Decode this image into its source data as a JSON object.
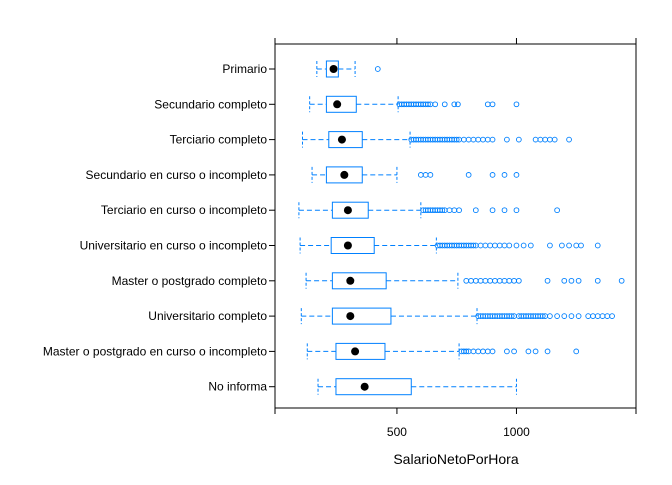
{
  "chart_data": {
    "type": "boxplot",
    "orientation": "horizontal",
    "title": "",
    "xlabel": "SalarioNetoPorHora",
    "ylabel": "",
    "xlim": [
      -10,
      1500
    ],
    "xticks": [
      500,
      1000
    ],
    "xtick_labels": [
      "500",
      "1000"
    ],
    "grid": false,
    "box_color": "#0080ff",
    "median_color": "#000000",
    "categories": [
      "Primario",
      "Secundario completo",
      "Terciario completo",
      "Secundario en curso o incompleto",
      "Terciario en curso o incompleto",
      "Universitario en curso o incompleto",
      "Master o postgrado completo",
      "Universitario completo",
      "Master o postgrado en curso o incompleto",
      "No informa"
    ],
    "boxes": [
      {
        "whisker_low": 165,
        "q1": 205,
        "median": 235,
        "q3": 255,
        "whisker_high": 325,
        "outliers": [
          420
        ]
      },
      {
        "whisker_low": 135,
        "q1": 205,
        "median": 250,
        "q3": 330,
        "whisker_high": 505,
        "outliers": [
          510,
          520,
          530,
          540,
          550,
          560,
          570,
          580,
          590,
          600,
          610,
          620,
          630,
          640,
          660,
          700,
          740,
          755,
          880,
          900,
          1000
        ]
      },
      {
        "whisker_low": 105,
        "q1": 215,
        "median": 270,
        "q3": 355,
        "whisker_high": 555,
        "outliers": [
          560,
          570,
          580,
          590,
          600,
          610,
          620,
          630,
          640,
          650,
          660,
          670,
          680,
          690,
          700,
          710,
          720,
          730,
          740,
          750,
          760,
          780,
          800,
          820,
          840,
          860,
          880,
          900,
          960,
          1010,
          1080,
          1100,
          1120,
          1140,
          1160,
          1220
        ]
      },
      {
        "whisker_low": 145,
        "q1": 205,
        "median": 280,
        "q3": 355,
        "whisker_high": 500,
        "outliers": [
          600,
          620,
          640,
          800,
          900,
          950,
          1000
        ]
      },
      {
        "whisker_low": 90,
        "q1": 230,
        "median": 295,
        "q3": 380,
        "whisker_high": 600,
        "outliers": [
          610,
          620,
          630,
          640,
          650,
          660,
          670,
          680,
          690,
          700,
          720,
          740,
          760,
          830,
          900,
          950,
          1000,
          1170
        ]
      },
      {
        "whisker_low": 95,
        "q1": 225,
        "median": 295,
        "q3": 405,
        "whisker_high": 665,
        "outliers": [
          670,
          680,
          690,
          700,
          710,
          720,
          730,
          740,
          750,
          760,
          770,
          780,
          790,
          800,
          810,
          820,
          830,
          850,
          870,
          890,
          910,
          930,
          950,
          970,
          1000,
          1030,
          1060,
          1140,
          1190,
          1220,
          1250,
          1270,
          1340
        ]
      },
      {
        "whisker_low": 120,
        "q1": 230,
        "median": 305,
        "q3": 455,
        "whisker_high": 755,
        "outliers": [
          790,
          810,
          830,
          850,
          870,
          890,
          910,
          930,
          950,
          970,
          990,
          1010,
          1130,
          1200,
          1230,
          1260,
          1340,
          1440
        ]
      },
      {
        "whisker_low": 100,
        "q1": 230,
        "median": 305,
        "q3": 475,
        "whisker_high": 835,
        "outliers": [
          840,
          850,
          860,
          870,
          880,
          890,
          900,
          910,
          920,
          930,
          940,
          950,
          960,
          970,
          980,
          990,
          1010,
          1020,
          1030,
          1040,
          1050,
          1060,
          1070,
          1080,
          1090,
          1100,
          1110,
          1120,
          1140,
          1170,
          1200,
          1230,
          1260,
          1300,
          1320,
          1340,
          1360,
          1380,
          1400
        ]
      },
      {
        "whisker_low": 125,
        "q1": 245,
        "median": 325,
        "q3": 450,
        "whisker_high": 760,
        "outliers": [
          770,
          780,
          790,
          800,
          820,
          840,
          860,
          880,
          900,
          960,
          990,
          1050,
          1080,
          1130,
          1250
        ]
      },
      {
        "whisker_low": 170,
        "q1": 245,
        "median": 365,
        "q3": 560,
        "whisker_high": 1000,
        "outliers": []
      }
    ]
  }
}
